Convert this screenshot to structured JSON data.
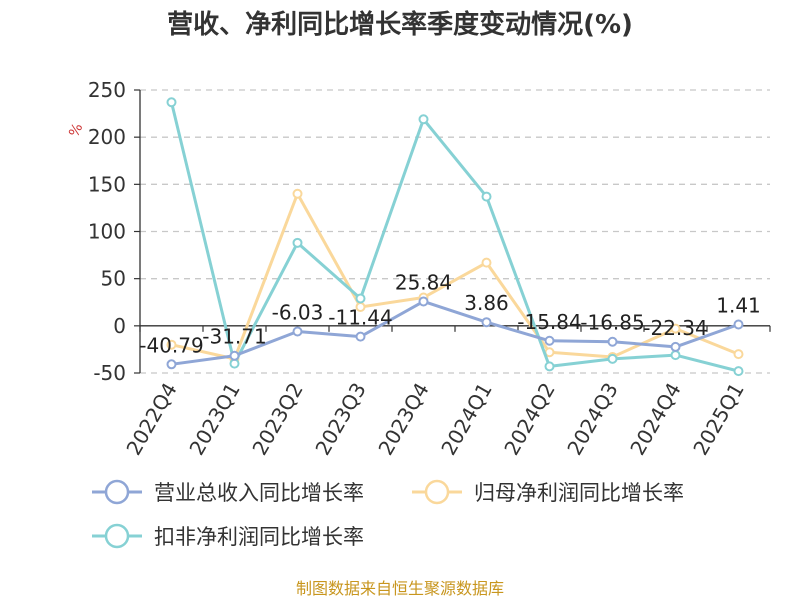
{
  "chart_data": {
    "type": "line",
    "title": "营收、净利同比增长率季度变动情况(%)",
    "ylabel": "%",
    "ylim": [
      -50,
      250
    ],
    "yticks": [
      -50,
      0,
      50,
      100,
      150,
      200,
      250
    ],
    "categories": [
      "2022Q4",
      "2023Q1",
      "2023Q2",
      "2023Q3",
      "2023Q4",
      "2024Q1",
      "2024Q2",
      "2024Q3",
      "2024Q4",
      "2025Q1"
    ],
    "grid": true,
    "legend_position": "bottom",
    "series": [
      {
        "name": "营业总收入同比增长率",
        "color": "#8fa6d6",
        "values": [
          -40.79,
          -31.71,
          -6.03,
          -11.44,
          25.84,
          3.86,
          -15.84,
          -16.85,
          -22.34,
          1.41
        ],
        "labels": [
          "-40.79",
          "-31.71",
          "-6.03",
          "-11.44",
          "25.84",
          "3.86",
          "-15.84",
          "-16.85",
          "-22.34",
          "1.41"
        ]
      },
      {
        "name": "归母净利润同比增长率",
        "color": "#fad89b",
        "values": [
          -20,
          -35,
          140,
          20,
          30,
          67,
          -28,
          -33,
          -3,
          -30
        ]
      },
      {
        "name": "扣非净利润同比增长率",
        "color": "#86d1d4",
        "values": [
          237,
          -40,
          88,
          29,
          219,
          137,
          -43,
          -35,
          -31,
          -48
        ]
      }
    ]
  },
  "footer": {
    "source": "制图数据来自恒生聚源数据库"
  }
}
